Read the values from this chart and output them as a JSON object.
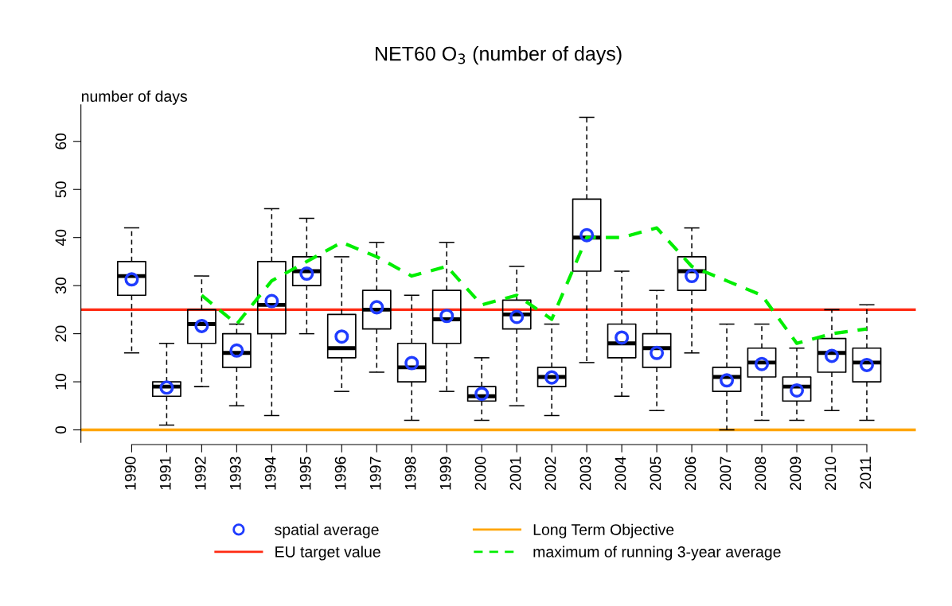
{
  "chart_data": {
    "type": "box",
    "title": "NET60 O$_{3}$ (number of days)",
    "ylabel": "number of days",
    "categories": [
      "1990",
      "1991",
      "1992",
      "1993",
      "1994",
      "1995",
      "1996",
      "1997",
      "1998",
      "1999",
      "2000",
      "2001",
      "2002",
      "2003",
      "2004",
      "2005",
      "2006",
      "2007",
      "2008",
      "2009",
      "2010",
      "2011"
    ],
    "boxes": [
      {
        "low": 16,
        "q1": 28,
        "median": 32,
        "q3": 35,
        "high": 42
      },
      {
        "low": 1,
        "q1": 7,
        "median": 9,
        "q3": 10,
        "high": 18
      },
      {
        "low": 9,
        "q1": 18,
        "median": 22,
        "q3": 25,
        "high": 32
      },
      {
        "low": 5,
        "q1": 13,
        "median": 16,
        "q3": 20,
        "high": 22
      },
      {
        "low": 3,
        "q1": 20,
        "median": 26,
        "q3": 35,
        "high": 46
      },
      {
        "low": 20,
        "q1": 30,
        "median": 33,
        "q3": 36,
        "high": 44
      },
      {
        "low": 8,
        "q1": 15,
        "median": 17,
        "q3": 24,
        "high": 36
      },
      {
        "low": 12,
        "q1": 21,
        "median": 25,
        "q3": 29,
        "high": 39
      },
      {
        "low": 2,
        "q1": 10,
        "median": 13,
        "q3": 18,
        "high": 28
      },
      {
        "low": 8,
        "q1": 18,
        "median": 23,
        "q3": 29,
        "high": 39
      },
      {
        "low": 2,
        "q1": 6,
        "median": 7,
        "q3": 9,
        "high": 15
      },
      {
        "low": 5,
        "q1": 21,
        "median": 24,
        "q3": 27,
        "high": 34
      },
      {
        "low": 3,
        "q1": 9,
        "median": 11,
        "q3": 13,
        "high": 22
      },
      {
        "low": 14,
        "q1": 33,
        "median": 40,
        "q3": 48,
        "high": 65
      },
      {
        "low": 7,
        "q1": 15,
        "median": 18,
        "q3": 22,
        "high": 33
      },
      {
        "low": 4,
        "q1": 13,
        "median": 17,
        "q3": 20,
        "high": 29
      },
      {
        "low": 16,
        "q1": 29,
        "median": 33,
        "q3": 36,
        "high": 42
      },
      {
        "low": 0,
        "q1": 8,
        "median": 11,
        "q3": 13,
        "high": 22
      },
      {
        "low": 2,
        "q1": 11,
        "median": 14,
        "q3": 17,
        "high": 22
      },
      {
        "low": 2,
        "q1": 6,
        "median": 9,
        "q3": 11,
        "high": 17
      },
      {
        "low": 4,
        "q1": 12,
        "median": 16,
        "q3": 19,
        "high": 25
      },
      {
        "low": 2,
        "q1": 10,
        "median": 14,
        "q3": 17,
        "high": 26
      }
    ],
    "series": [
      {
        "name": "spatial average",
        "type": "scatter",
        "marker": "circle",
        "color": "#1f3cff",
        "values": [
          31.3,
          8.8,
          21.6,
          16.5,
          26.8,
          32.5,
          19.4,
          25.5,
          13.9,
          23.7,
          7.5,
          23.5,
          10.9,
          40.5,
          19.2,
          16,
          32,
          10.3,
          13.7,
          8.2,
          15.4,
          13.5
        ]
      },
      {
        "name": "maximum of running 3-year average",
        "type": "line",
        "line_style": "dashed",
        "color": "#00ee00",
        "values": [
          null,
          null,
          28,
          22,
          31,
          35,
          39,
          36,
          32,
          34,
          26,
          28,
          23,
          40,
          40,
          42,
          34,
          31,
          28,
          18,
          20,
          21
        ]
      }
    ],
    "ref_lines": [
      {
        "axis": "y",
        "value": 25,
        "label": "EU target value",
        "color": "#ff2a12"
      },
      {
        "axis": "y",
        "value": 0,
        "label": "Long Term Objective",
        "color": "#ffa500"
      }
    ],
    "ylim": [
      -2.6,
      67.6
    ],
    "yticks": [
      0,
      10,
      20,
      30,
      40,
      50,
      60
    ],
    "grid": false,
    "legend": "bottom"
  }
}
